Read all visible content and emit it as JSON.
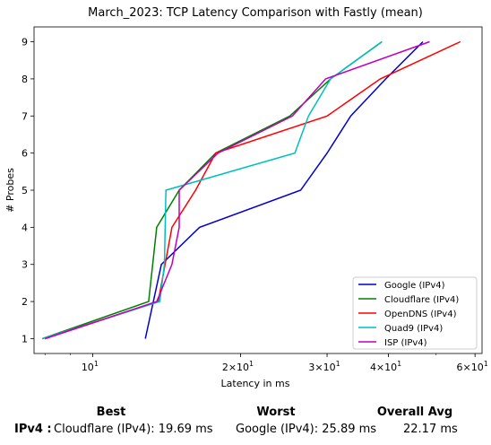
{
  "chart_data": {
    "type": "line",
    "title": "March_2023: TCP Latency Comparison with Fastly (mean)",
    "xlabel": "Latency in ms",
    "ylabel": "# Probes",
    "xscale": "log",
    "xlim": [
      7.6,
      62
    ],
    "ylim": [
      0.6,
      9.4
    ],
    "yticks": [
      1,
      2,
      3,
      4,
      5,
      6,
      7,
      8,
      9
    ],
    "xticks": [
      {
        "value": 10,
        "base": "10",
        "exp": "1",
        "coef": ""
      },
      {
        "value": 20,
        "base": "10",
        "exp": "1",
        "coef": "2×"
      },
      {
        "value": 30,
        "base": "10",
        "exp": "1",
        "coef": "3×"
      },
      {
        "value": 40,
        "base": "10",
        "exp": "1",
        "coef": "4×"
      },
      {
        "value": 60,
        "base": "10",
        "exp": "1",
        "coef": "6×"
      }
    ],
    "grid": false,
    "legend_position": "lower-right",
    "series": [
      {
        "name": "Google (IPv4)",
        "color": "#0000cc",
        "x": [
          12.8,
          13.8,
          16.5,
          26.5,
          30.0,
          33.5,
          39.5,
          47.0
        ],
        "y": [
          1,
          3,
          4,
          5,
          6,
          7,
          8,
          9
        ]
      },
      {
        "name": "Cloudflare (IPv4)",
        "color": "#008000",
        "x": [
          7.9,
          13.0,
          13.5,
          15.0,
          17.8,
          25.2,
          30.5,
          38.8
        ],
        "y": [
          1,
          2,
          4,
          5,
          6,
          7,
          8,
          9
        ]
      },
      {
        "name": "OpenDNS (IPv4)",
        "color": "#ff0000",
        "x": [
          8.0,
          13.6,
          14.5,
          16.2,
          17.8,
          30.0,
          38.5,
          56.0
        ],
        "y": [
          1,
          2,
          4,
          5,
          6,
          7,
          8,
          9
        ]
      },
      {
        "name": "Quad9 (IPv4)",
        "color": "#00bfbf",
        "x": [
          7.9,
          13.7,
          14.0,
          14.1,
          25.8,
          27.5,
          30.5,
          38.8
        ],
        "y": [
          1,
          2,
          3,
          5,
          6,
          7,
          8,
          9
        ]
      },
      {
        "name": "ISP (IPv4)",
        "color": "#bf00bf",
        "x": [
          8.0,
          13.5,
          14.5,
          15.0,
          15.0,
          18.0,
          25.5,
          29.8,
          48.5
        ],
        "y": [
          1,
          2,
          3,
          4,
          5,
          6,
          7,
          8,
          9
        ]
      }
    ]
  },
  "summary": {
    "best_header": "Best",
    "worst_header": "Worst",
    "avg_header": "Overall Avg",
    "row_label": "IPv4 :",
    "best_value": "Cloudflare (IPv4): 19.69 ms",
    "worst_value": "Google (IPv4): 25.89 ms",
    "avg_value": "22.17 ms"
  }
}
